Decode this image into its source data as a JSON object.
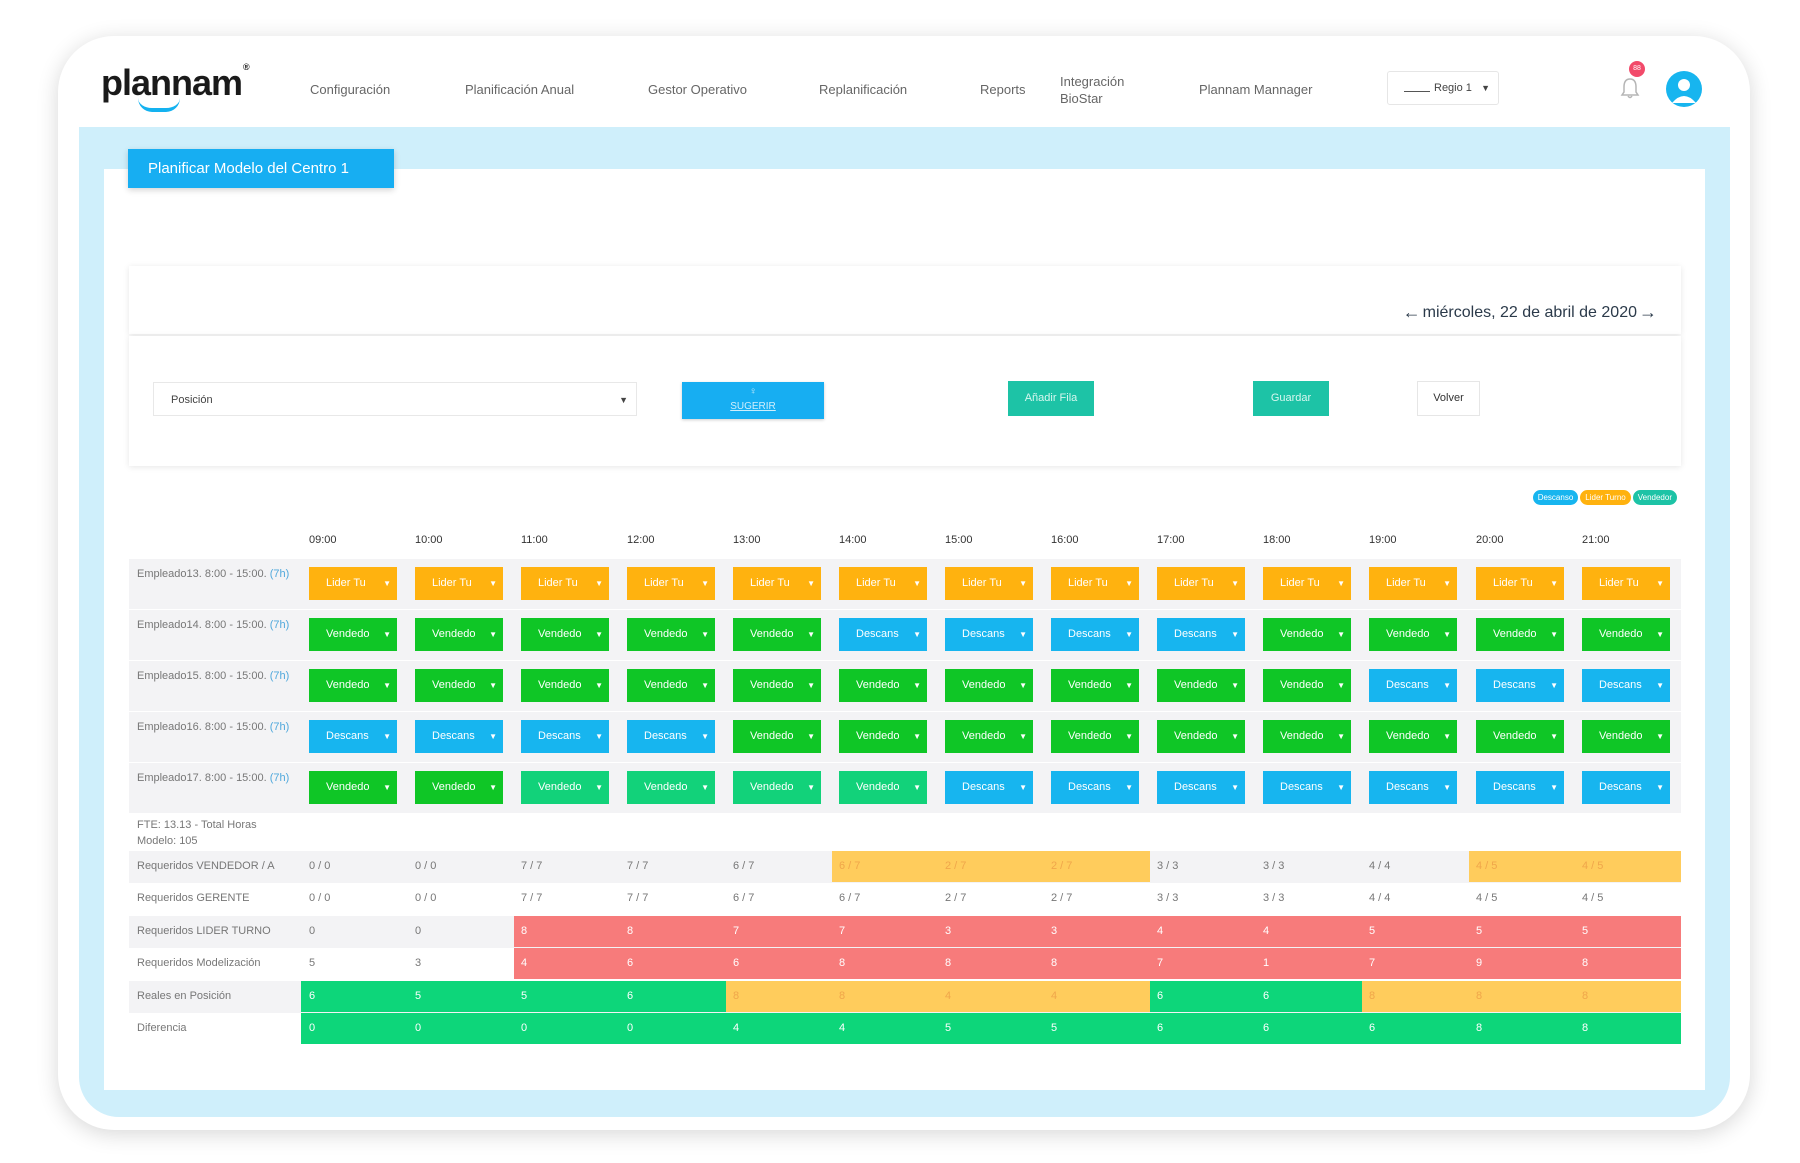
{
  "brand": {
    "name": "plannam",
    "reg": "®"
  },
  "nav": {
    "items": [
      "Configuración",
      "Planificación Anual",
      "Gestor Operativo",
      "Replanificación",
      "Reports",
      "Integración BioStar",
      "Plannam Mannager"
    ],
    "region_value": "Regio 1",
    "notifications_count": "88"
  },
  "page_title": "Planificar Modelo del Centro 1",
  "date": "miércoles, 22 de abril de 2020",
  "controls": {
    "position_placeholder": "Posición",
    "suggest_label": "SUGERIR",
    "add_row_label": "Añadir Fila",
    "save_label": "Guardar",
    "back_label": "Volver"
  },
  "legend": [
    {
      "label": "Descanso",
      "color": "#17b5ef"
    },
    {
      "label": "Lider Turno",
      "color": "#ffb20f"
    },
    {
      "label": "Vendedor",
      "color": "#1dc3a6"
    }
  ],
  "hours": [
    "09:00",
    "10:00",
    "11:00",
    "12:00",
    "13:00",
    "14:00",
    "15:00",
    "16:00",
    "17:00",
    "18:00",
    "19:00",
    "20:00",
    "21:00"
  ],
  "employees": [
    {
      "name": "Empleado13. 8:00 - 15:00.",
      "hours": "(7h)",
      "cells": [
        "L",
        "L",
        "L",
        "L",
        "L",
        "L",
        "L",
        "L",
        "L",
        "L",
        "L",
        "L",
        "L"
      ]
    },
    {
      "name": "Empleado14. 8:00 - 15:00.",
      "hours": "(7h)",
      "cells": [
        "V",
        "V",
        "V",
        "V",
        "V",
        "D",
        "D",
        "D",
        "D",
        "V",
        "V",
        "V",
        "V"
      ]
    },
    {
      "name": "Empleado15. 8:00 - 15:00.",
      "hours": "(7h)",
      "cells": [
        "V",
        "V",
        "V",
        "V",
        "V",
        "V",
        "V",
        "V",
        "V",
        "V",
        "D",
        "D",
        "D"
      ]
    },
    {
      "name": "Empleado16. 8:00 - 15:00.",
      "hours": "(7h)",
      "cells": [
        "D",
        "D",
        "D",
        "D",
        "V",
        "V",
        "V",
        "V",
        "V",
        "V",
        "V",
        "V",
        "V"
      ]
    },
    {
      "name": "Empleado17. 8:00 - 15:00.",
      "hours": "(7h)",
      "cells": [
        "V",
        "V",
        "V2",
        "V2",
        "V2",
        "V2",
        "D",
        "D",
        "D",
        "D",
        "D",
        "D",
        "D"
      ]
    }
  ],
  "cell_types": {
    "L": {
      "label": "Lider Tu",
      "color": "#ffb20f"
    },
    "V": {
      "label": "Vendedo",
      "color": "#0fc626"
    },
    "V2": {
      "label": "Vendedo",
      "color": "#12d27a"
    },
    "D": {
      "label": "Descans",
      "color": "#17b5ef"
    }
  },
  "fte": {
    "line1": "FTE: 13.13 - Total Horas",
    "line2": "Modelo: 105"
  },
  "requirements": [
    {
      "label": "Requeridos VENDEDOR / A",
      "values": [
        "0 / 0",
        "0 / 0",
        "7 / 7",
        "7 / 7",
        "6 / 7",
        "6 / 7",
        "2 / 7",
        "2 / 7",
        "3 / 3",
        "3 / 3",
        "4 / 4",
        "4 / 5",
        "4 / 5"
      ]
    },
    {
      "label": "Requeridos GERENTE",
      "values": [
        "0 / 0",
        "0 / 0",
        "7 / 7",
        "7 / 7",
        "6 / 7",
        "6 / 7",
        "2 / 7",
        "2 / 7",
        "3 / 3",
        "3 / 3",
        "4 / 4",
        "4 / 5",
        "4 / 5"
      ]
    },
    {
      "label": "Requeridos LIDER TURNO",
      "values": [
        "0",
        "0",
        "8",
        "8",
        "7",
        "7",
        "3",
        "3",
        "4",
        "4",
        "5",
        "5",
        "5"
      ]
    },
    {
      "label": "Requeridos Modelización",
      "values": [
        "5",
        "3",
        "4",
        "6",
        "6",
        "8",
        "8",
        "8",
        "7",
        "1",
        "7",
        "9",
        "8"
      ]
    },
    {
      "label": "Reales en Posición",
      "values": [
        "6",
        "5",
        "5",
        "6",
        "8",
        "8",
        "4",
        "4",
        "6",
        "6",
        "8",
        "8",
        "8"
      ]
    },
    {
      "label": "Diferencia",
      "values": [
        "0",
        "0",
        "0",
        "0",
        "4",
        "4",
        "5",
        "5",
        "6",
        "6",
        "6",
        "8",
        "8"
      ]
    }
  ],
  "band_colors": {
    "orange": "#ffcc5c",
    "red": "#f77b7b",
    "green": "#0dd67a"
  }
}
